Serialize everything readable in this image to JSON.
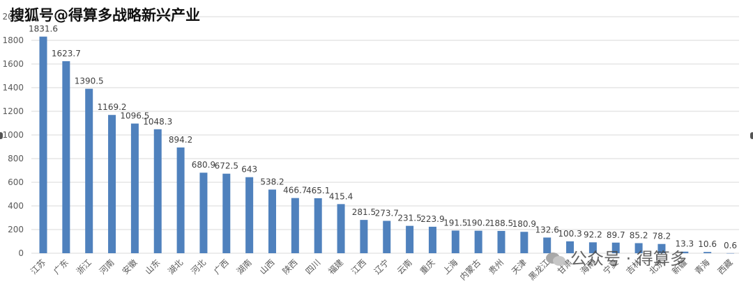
{
  "watermark_top": "搜狐号@得算多战略新兴产业",
  "watermark_bottom": "公众号 · 得算多",
  "colors": {
    "bar": "#4f81bd",
    "grid": "#d9d9d9",
    "axis_text": "#595959"
  },
  "chart_data": {
    "type": "bar",
    "title": "",
    "xlabel": "",
    "ylabel": "",
    "ylim": [
      0,
      2000
    ],
    "yticks": [
      0,
      200,
      400,
      600,
      800,
      1000,
      1200,
      1400,
      1600,
      1800,
      2000
    ],
    "grid": true,
    "categories": [
      "江苏",
      "广东",
      "浙江",
      "河南",
      "安徽",
      "山东",
      "湖北",
      "河北",
      "广西",
      "湖南",
      "山西",
      "陕西",
      "四川",
      "福建",
      "江西",
      "辽宁",
      "云南",
      "重庆",
      "上海",
      "内蒙古",
      "贵州",
      "天津",
      "黑龙江",
      "甘肃",
      "海南",
      "宁夏",
      "吉林",
      "北京",
      "新疆",
      "青海",
      "西藏"
    ],
    "values": [
      1831.6,
      1623.7,
      1390.5,
      1169.2,
      1096.5,
      1048.3,
      894.2,
      680.9,
      672.5,
      643,
      538.2,
      466.7,
      465.1,
      415.4,
      281.5,
      273.7,
      231.5,
      223.9,
      191.5,
      190.2,
      188.5,
      180.9,
      132.6,
      100.3,
      92.2,
      89.7,
      85.2,
      78.2,
      13.3,
      10.6,
      0.6
    ],
    "value_labels": [
      "1831.6",
      "1623.7",
      "1390.5",
      "1169.2",
      "1096.5",
      "1048.3",
      "894.2",
      "680.9",
      "672.5",
      "643",
      "538.2",
      "466.7",
      "465.1",
      "415.4",
      "281.5",
      "273.7",
      "231.5",
      "223.9",
      "191.5",
      "190.2",
      "188.5",
      "180.9",
      "132.6",
      "100.3",
      "92.2",
      "89.7",
      "85.2",
      "78.2",
      "13.3",
      "10.6",
      "0.6"
    ]
  }
}
